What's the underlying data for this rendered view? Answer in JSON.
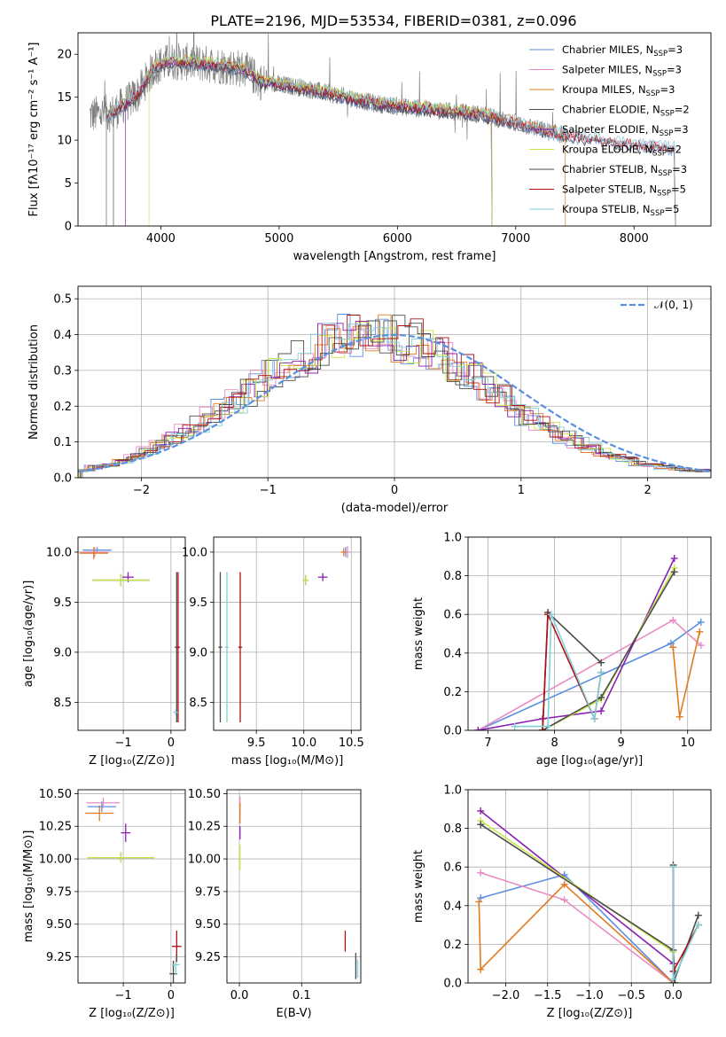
{
  "figure_title": "PLATE=2196, MJD=53534, FIBERID=0381, z=0.096",
  "colors": {
    "Chabrier MILES": "#5b8fe0",
    "Salpeter MILES": "#e88cc4",
    "Kroupa MILES": "#e07b1f",
    "Chabrier ELODIE": "#4d4d4d",
    "Salpeter ELODIE": "#8b1fb0",
    "Kroupa ELODIE": "#c8e84a",
    "Chabrier STELIB": "#4a4a4a",
    "Salpeter STELIB": "#b01010",
    "Kroupa STELIB": "#7fd0d8",
    "data": "#808080",
    "normal": "#5b8fe0"
  },
  "chart_data": [
    {
      "type": "line",
      "xlabel": "wavelength [Angstrom, rest frame]",
      "ylabel": "Flux [fλ10⁻¹⁷ erg cm⁻² s⁻¹ A⁻¹]",
      "xlim": [
        3300,
        8650
      ],
      "ylim": [
        0,
        22.5
      ],
      "xticks": [
        4000,
        5000,
        6000,
        7000,
        8000
      ],
      "yticks": [
        0,
        5,
        10,
        15,
        20
      ],
      "grid": false,
      "legend_position": "top-right",
      "legend": [
        {
          "label": "Chabrier MILES, Nₛₛₚ=3",
          "series": "Chabrier MILES",
          "base": "Chabrier MILES, N",
          "sub": "SSP",
          "tail": "=3"
        },
        {
          "label": "Salpeter MILES, Nₛₛₚ=3",
          "series": "Salpeter MILES",
          "base": "Salpeter MILES, N",
          "sub": "SSP",
          "tail": "=3"
        },
        {
          "label": "Kroupa MILES, Nₛₛₚ=3",
          "series": "Kroupa MILES",
          "base": "Kroupa MILES, N",
          "sub": "SSP",
          "tail": "=3"
        },
        {
          "label": "Chabrier ELODIE, Nₛₛₚ=2",
          "series": "Chabrier ELODIE",
          "base": "Chabrier ELODIE, N",
          "sub": "SSP",
          "tail": "=2"
        },
        {
          "label": "Salpeter ELODIE, Nₛₛₚ=3",
          "series": "Salpeter ELODIE",
          "base": "Salpeter ELODIE, N",
          "sub": "SSP",
          "tail": "=3"
        },
        {
          "label": "Kroupa ELODIE, Nₛₛₚ=2",
          "series": "Kroupa ELODIE",
          "base": "Kroupa ELODIE, N",
          "sub": "SSP",
          "tail": "=2"
        },
        {
          "label": "Chabrier STELIB, Nₛₛₚ=3",
          "series": "Chabrier STELIB",
          "base": "Chabrier STELIB, N",
          "sub": "SSP",
          "tail": "=3"
        },
        {
          "label": "Salpeter STELIB, Nₛₛₚ=5",
          "series": "Salpeter STELIB",
          "base": "Salpeter STELIB, N",
          "sub": "SSP",
          "tail": "=5"
        },
        {
          "label": "Kroupa STELIB, Nₛₛₚ=5",
          "series": "Kroupa STELIB",
          "base": "Kroupa STELIB, N",
          "sub": "SSP",
          "tail": "=5"
        }
      ],
      "continuum": {
        "x": [
          3400,
          3600,
          3800,
          3950,
          4100,
          4300,
          4500,
          4700,
          4850,
          5000,
          5200,
          5500,
          5800,
          6100,
          6400,
          6700,
          7000,
          7300,
          7600,
          8000,
          8300
        ],
        "y": [
          12.9,
          13.2,
          15.3,
          18.6,
          19.2,
          19.0,
          18.7,
          18.3,
          16.8,
          16.5,
          16.1,
          15.2,
          14.3,
          13.8,
          13.4,
          13.0,
          12.0,
          10.9,
          10.2,
          9.5,
          9.1
        ]
      },
      "data_xrange": [
        3400,
        7420
      ],
      "model_xrange": [
        3540,
        8350
      ]
    },
    {
      "type": "step",
      "xlabel": "(data-model)/error",
      "ylabel": "Normed distribution",
      "xlim": [
        -2.5,
        2.5
      ],
      "ylim": [
        0,
        0.535
      ],
      "xticks": [
        -2,
        -1,
        0,
        1,
        2
      ],
      "yticks": [
        0.0,
        0.1,
        0.2,
        0.3,
        0.4,
        0.5
      ],
      "grid": true,
      "legend_position": "top-right",
      "legend": [
        "𝒩(0, 1)"
      ],
      "bin_width": 0.1,
      "histogram_base": [
        0.02,
        0.03,
        0.035,
        0.045,
        0.06,
        0.075,
        0.09,
        0.11,
        0.13,
        0.15,
        0.17,
        0.19,
        0.21,
        0.235,
        0.26,
        0.285,
        0.31,
        0.33,
        0.35,
        0.37,
        0.385,
        0.395,
        0.4,
        0.4,
        0.395,
        0.39,
        0.38,
        0.36,
        0.345,
        0.325,
        0.3,
        0.275,
        0.25,
        0.225,
        0.2,
        0.175,
        0.155,
        0.135,
        0.115,
        0.1,
        0.085,
        0.07,
        0.06,
        0.05,
        0.04,
        0.035,
        0.03,
        0.025,
        0.02,
        0.02
      ],
      "normal": {
        "mean": 0,
        "sigma": 1
      }
    },
    {
      "type": "errorbar",
      "xlabel": "Z [log₁₀(Z/Z⊙)]",
      "ylabel": "age  [log₁₀(age/yr)]",
      "xlim": [
        -1.95,
        0.3
      ],
      "ylim": [
        8.22,
        10.15
      ],
      "xticks": [
        -1,
        0
      ],
      "yticks": [
        8.5,
        9.0,
        9.5,
        10.0
      ],
      "grid": true,
      "points": [
        {
          "series": "Chabrier MILES",
          "x": -1.55,
          "xerr": 0.3,
          "y": 10.02,
          "yerr": 0.03
        },
        {
          "series": "Salpeter MILES",
          "x": -1.6,
          "xerr": 0.3,
          "y": 10.0,
          "yerr": 0.05
        },
        {
          "series": "Kroupa MILES",
          "x": -1.62,
          "xerr": 0.3,
          "y": 9.99,
          "yerr": 0.06
        },
        {
          "series": "Chabrier ELODIE",
          "x": -1.05,
          "xerr": 0.6,
          "y": 9.72,
          "yerr": 0.06
        },
        {
          "series": "Salpeter ELODIE",
          "x": -0.9,
          "xerr": 0.12,
          "y": 9.75,
          "yerr": 0.05
        },
        {
          "series": "Kroupa ELODIE",
          "x": -1.05,
          "xerr": 0.6,
          "y": 9.72,
          "yerr": 0.06
        },
        {
          "series": "Chabrier STELIB",
          "x": 0.12,
          "xerr": 0.04,
          "y": 9.05,
          "yerr": 0.75
        },
        {
          "series": "Salpeter STELIB",
          "x": 0.15,
          "xerr": 0.04,
          "y": 9.05,
          "yerr": 0.75
        },
        {
          "series": "Kroupa STELIB",
          "x": 0.1,
          "xerr": 0.05,
          "y": 8.4,
          "yerr": 0.03
        }
      ]
    },
    {
      "type": "errorbar",
      "xlabel": "mass [log₁₀(M/M⊙)]",
      "ylabel": "",
      "xlim": [
        9.05,
        10.6
      ],
      "ylim": [
        8.22,
        10.15
      ],
      "xticks": [
        9.5,
        10.0,
        10.5
      ],
      "yticks": [
        8.5,
        9.0,
        9.5,
        10.0
      ],
      "grid": true,
      "points": [
        {
          "series": "Chabrier MILES",
          "x": 10.44,
          "xerr": 0.03,
          "y": 10.0,
          "yerr": 0.05
        },
        {
          "series": "Salpeter MILES",
          "x": 10.46,
          "xerr": 0.03,
          "y": 10.0,
          "yerr": 0.06
        },
        {
          "series": "Kroupa MILES",
          "x": 10.42,
          "xerr": 0.03,
          "y": 10.0,
          "yerr": 0.04
        },
        {
          "series": "Chabrier ELODIE",
          "x": 10.02,
          "xerr": 0.03,
          "y": 9.72,
          "yerr": 0.05
        },
        {
          "series": "Salpeter ELODIE",
          "x": 10.2,
          "xerr": 0.05,
          "y": 9.75,
          "yerr": 0.04
        },
        {
          "series": "Kroupa ELODIE",
          "x": 10.02,
          "xerr": 0.03,
          "y": 9.72,
          "yerr": 0.05
        },
        {
          "series": "Chabrier STELIB",
          "x": 9.12,
          "xerr": 0.02,
          "y": 9.05,
          "yerr": 0.75
        },
        {
          "series": "Salpeter STELIB",
          "x": 9.33,
          "xerr": 0.02,
          "y": 9.05,
          "yerr": 0.75
        },
        {
          "series": "Kroupa STELIB",
          "x": 9.19,
          "xerr": 0.02,
          "y": 9.05,
          "yerr": 0.75
        }
      ]
    },
    {
      "type": "line",
      "xlabel": "age  [log₁₀(age/yr)]",
      "ylabel": "mass weight",
      "xlim": [
        6.7,
        10.35
      ],
      "ylim": [
        0,
        1.0
      ],
      "xticks": [
        7,
        8,
        9,
        10
      ],
      "yticks": [
        0.0,
        0.2,
        0.4,
        0.6,
        0.8,
        1.0
      ],
      "grid": true,
      "series": [
        {
          "name": "Chabrier MILES",
          "x": [
            6.85,
            9.75,
            10.2
          ],
          "y": [
            0.0,
            0.45,
            0.56
          ]
        },
        {
          "name": "Salpeter MILES",
          "x": [
            6.85,
            9.78,
            10.2
          ],
          "y": [
            0.0,
            0.57,
            0.44
          ]
        },
        {
          "name": "Kroupa MILES",
          "x": [
            9.78,
            9.88,
            10.18
          ],
          "y": [
            0.43,
            0.07,
            0.51
          ]
        },
        {
          "name": "Salpeter ELODIE",
          "x": [
            6.85,
            7.82,
            8.7,
            9.8
          ],
          "y": [
            0.0,
            0.06,
            0.1,
            0.89
          ]
        },
        {
          "name": "Kroupa ELODIE",
          "x": [
            7.82,
            8.7,
            9.8
          ],
          "y": [
            0.0,
            0.16,
            0.84
          ]
        },
        {
          "name": "Chabrier ELODIE",
          "x": [
            7.82,
            8.7,
            9.8
          ],
          "y": [
            0.0,
            0.17,
            0.82
          ]
        },
        {
          "name": "Chabrier STELIB",
          "x": [
            7.82,
            7.9,
            8.7
          ],
          "y": [
            0.0,
            0.61,
            0.35
          ]
        },
        {
          "name": "Salpeter STELIB",
          "x": [
            7.82,
            7.9,
            8.6,
            8.7
          ],
          "y": [
            0.0,
            0.6,
            0.06,
            0.3
          ]
        },
        {
          "name": "Kroupa STELIB",
          "x": [
            7.4,
            7.9,
            7.95,
            8.6,
            8.7
          ],
          "y": [
            0.02,
            0.02,
            0.6,
            0.06,
            0.3
          ]
        }
      ]
    },
    {
      "type": "errorbar",
      "xlabel": "Z [log₁₀(Z/Z⊙)]",
      "ylabel": "mass [log₁₀(M/M⊙)]",
      "xlim": [
        -1.95,
        0.3
      ],
      "ylim": [
        9.05,
        10.53
      ],
      "xticks": [
        -1,
        0
      ],
      "yticks": [
        9.25,
        9.5,
        9.75,
        10.0,
        10.25,
        10.5
      ],
      "grid": true,
      "points": [
        {
          "series": "Chabrier MILES",
          "x": -1.45,
          "xerr": 0.3,
          "y": 10.4,
          "yerr": 0.04
        },
        {
          "series": "Salpeter MILES",
          "x": -1.42,
          "xerr": 0.35,
          "y": 10.43,
          "yerr": 0.04
        },
        {
          "series": "Kroupa MILES",
          "x": -1.5,
          "xerr": 0.3,
          "y": 10.35,
          "yerr": 0.06
        },
        {
          "series": "Chabrier ELODIE",
          "x": -1.05,
          "xerr": 0.7,
          "y": 10.01,
          "yerr": 0.04
        },
        {
          "series": "Salpeter ELODIE",
          "x": -0.95,
          "xerr": 0.1,
          "y": 10.2,
          "yerr": 0.07
        },
        {
          "series": "Kroupa ELODIE",
          "x": -1.05,
          "xerr": 0.7,
          "y": 10.01,
          "yerr": 0.04
        },
        {
          "series": "Chabrier STELIB",
          "x": 0.05,
          "xerr": 0.08,
          "y": 9.12,
          "yerr": 0.1
        },
        {
          "series": "Salpeter STELIB",
          "x": 0.12,
          "xerr": 0.1,
          "y": 9.33,
          "yerr": 0.12
        },
        {
          "series": "Kroupa STELIB",
          "x": 0.1,
          "xerr": 0.08,
          "y": 9.19,
          "yerr": 0.08
        }
      ]
    },
    {
      "type": "errorbar",
      "xlabel": "E(B-V)",
      "ylabel": "",
      "xlim": [
        -0.02,
        0.195
      ],
      "ylim": [
        9.05,
        10.53
      ],
      "xticks": [
        0.0,
        0.1
      ],
      "yticks": [
        9.25,
        9.5,
        9.75,
        10.0,
        10.25,
        10.5
      ],
      "grid": true,
      "points": [
        {
          "series": "Salpeter MILES",
          "x": 0.001,
          "xerr": 0,
          "y": 10.4,
          "yerr": 0.08
        },
        {
          "series": "Kroupa MILES",
          "x": 0.001,
          "xerr": 0,
          "y": 10.35,
          "yerr": 0.08
        },
        {
          "series": "Salpeter ELODIE",
          "x": 0.001,
          "xerr": 0,
          "y": 10.2,
          "yerr": 0.05
        },
        {
          "series": "Kroupa ELODIE",
          "x": 0.001,
          "xerr": 0,
          "y": 10.01,
          "yerr": 0.1
        },
        {
          "series": "Salpeter STELIB",
          "x": 0.17,
          "xerr": 0,
          "y": 9.37,
          "yerr": 0.08
        },
        {
          "series": "Chabrier STELIB",
          "x": 0.187,
          "xerr": 0,
          "y": 9.18,
          "yerr": 0.1
        },
        {
          "series": "Kroupa STELIB",
          "x": 0.19,
          "xerr": 0,
          "y": 9.16,
          "yerr": 0.07
        }
      ]
    },
    {
      "type": "line",
      "xlabel": "Z [log₁₀(Z/Z⊙)]",
      "ylabel": "mass weight",
      "xlim": [
        -2.45,
        0.45
      ],
      "ylim": [
        0,
        1.0
      ],
      "xticks": [
        -2.0,
        -1.5,
        -1.0,
        -0.5,
        0.0
      ],
      "yticks": [
        0.0,
        0.2,
        0.4,
        0.6,
        0.8,
        1.0
      ],
      "grid": true,
      "series": [
        {
          "name": "Chabrier MILES",
          "x": [
            -2.3,
            -1.3,
            0.0
          ],
          "y": [
            0.44,
            0.56,
            0.0
          ]
        },
        {
          "name": "Salpeter MILES",
          "x": [
            -2.3,
            -1.3,
            0.0
          ],
          "y": [
            0.57,
            0.43,
            0.0
          ]
        },
        {
          "name": "Kroupa MILES",
          "x": [
            -2.32,
            -2.3,
            -1.3,
            0.0
          ],
          "y": [
            0.42,
            0.07,
            0.51,
            0.0
          ]
        },
        {
          "name": "Salpeter ELODIE",
          "x": [
            -2.3,
            0.0,
            0.02
          ],
          "y": [
            0.89,
            0.1,
            0.06
          ]
        },
        {
          "name": "Kroupa ELODIE",
          "x": [
            -2.3,
            0.0,
            0.02
          ],
          "y": [
            0.84,
            0.16,
            0.0
          ]
        },
        {
          "name": "Chabrier ELODIE",
          "x": [
            -2.3,
            0.0,
            0.02
          ],
          "y": [
            0.82,
            0.17,
            0.0
          ]
        },
        {
          "name": "Chabrier STELIB",
          "x": [
            0.0,
            0.0,
            0.3
          ],
          "y": [
            0.61,
            0.0,
            0.35
          ]
        },
        {
          "name": "Salpeter STELIB",
          "x": [
            0.0,
            0.0,
            0.3
          ],
          "y": [
            0.6,
            0.06,
            0.3
          ]
        },
        {
          "name": "Kroupa STELIB",
          "x": [
            0.0,
            0.0,
            0.3
          ],
          "y": [
            0.6,
            0.02,
            0.3
          ]
        }
      ]
    }
  ]
}
